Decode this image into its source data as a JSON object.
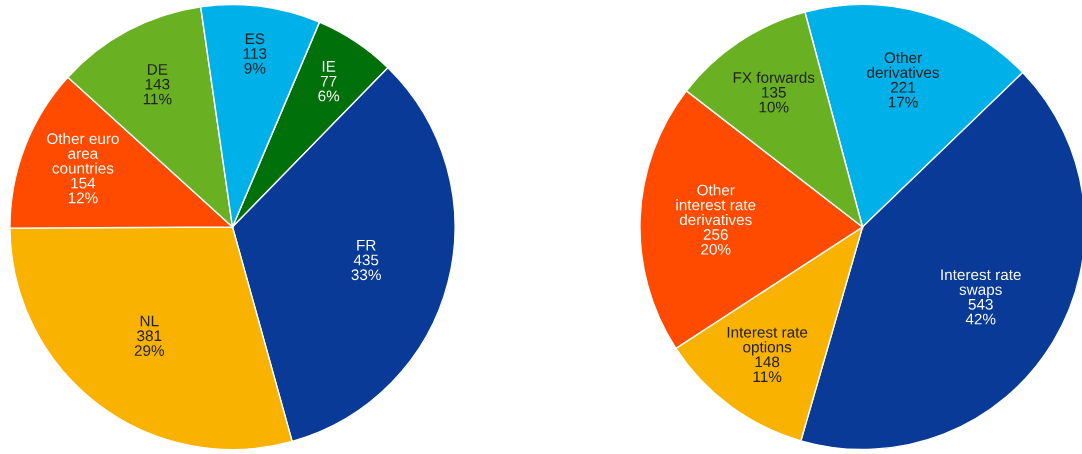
{
  "chart_data": [
    {
      "type": "pie",
      "categories": [
        "IE",
        "FR",
        "NL",
        "Other euro\narea\ncountries",
        "DE",
        "ES"
      ],
      "values": [
        77,
        435,
        381,
        154,
        143,
        113
      ],
      "colors": [
        "#00700b",
        "#0a3a97",
        "#f9b200",
        "#ff4b00",
        "#6ab023",
        "#00b0e8"
      ],
      "value_labels": [
        "77\n6%",
        "435\n33%",
        "381\n29%",
        "154\n12%",
        "143\n11%",
        "113\n9%"
      ]
    },
    {
      "type": "pie",
      "categories": [
        "Other\nderivatives",
        "Interest rate\nswaps",
        "Interest rate\noptions",
        "Other\ninterest rate\nderivatives",
        "FX forwards"
      ],
      "values": [
        221,
        543,
        148,
        256,
        135
      ],
      "colors": [
        "#00b0e8",
        "#0a3a97",
        "#f9b200",
        "#ff4b00",
        "#6ab023"
      ],
      "value_labels": [
        "221\n17%",
        "543\n42%",
        "148\n11%",
        "256\n20%",
        "135\n10%"
      ]
    }
  ]
}
